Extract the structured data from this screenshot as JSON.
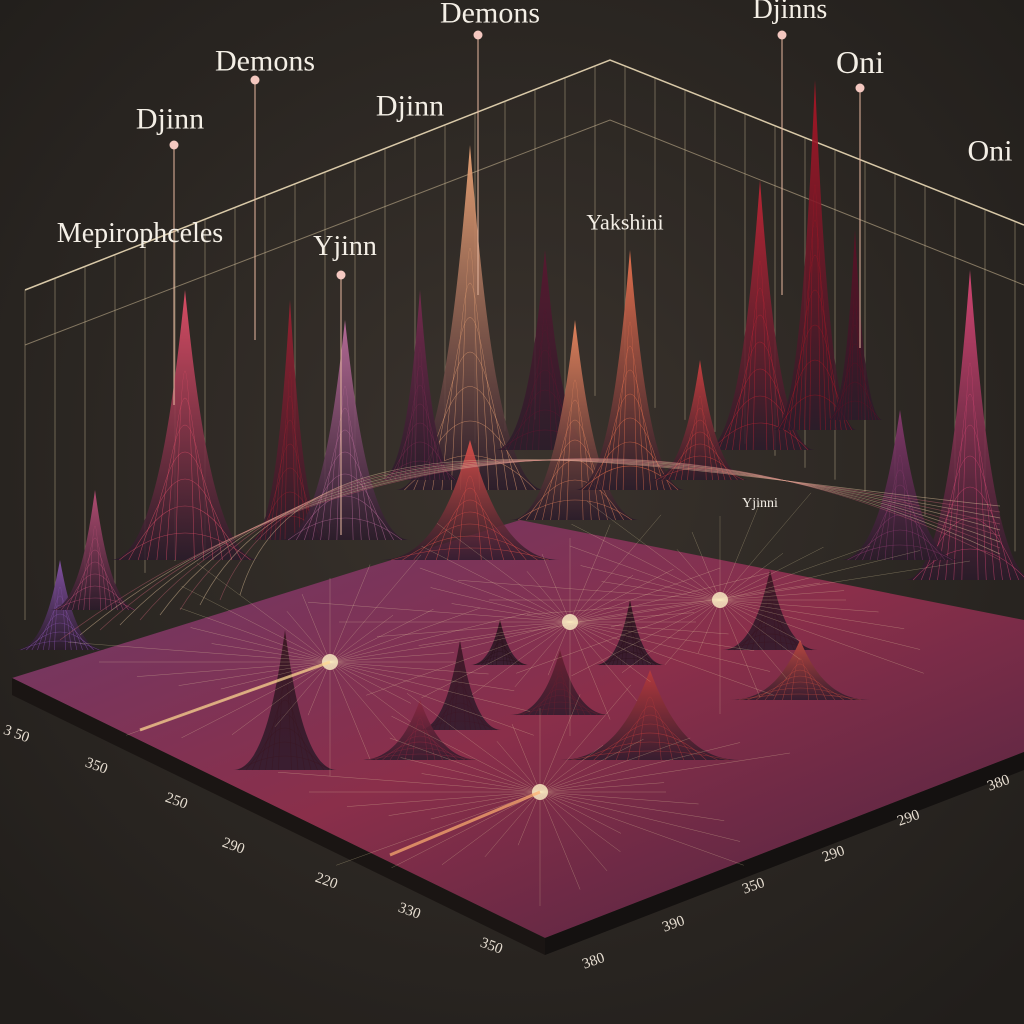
{
  "annotations": [
    "Demons",
    "Djinns",
    "Demons",
    "Djinn",
    "Djinn",
    "Oni",
    "Oni",
    "Mepirophceles",
    "Yjinn",
    "Yakshini",
    "Yjinni"
  ],
  "left_axis_labels": [
    "3 50",
    "350",
    "250",
    "290",
    "220",
    "330",
    "350"
  ],
  "right_axis_labels": [
    "380",
    "390",
    "350",
    "290",
    "290",
    "380"
  ]
}
